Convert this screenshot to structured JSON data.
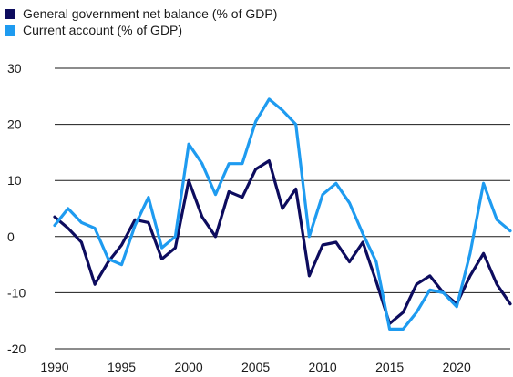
{
  "chart_data": {
    "type": "line",
    "title": "",
    "xlabel": "",
    "ylabel": "",
    "xlim": [
      1990,
      2024
    ],
    "ylim": [
      -20,
      30
    ],
    "y_ticks": [
      30,
      20,
      10,
      0,
      -10,
      -20
    ],
    "x_ticks": [
      1990,
      1995,
      2000,
      2005,
      2010,
      2015,
      2020
    ],
    "grid": "horizontal",
    "legend_position": "top-left",
    "x": [
      1990,
      1991,
      1992,
      1993,
      1994,
      1995,
      1996,
      1997,
      1998,
      1999,
      2000,
      2001,
      2002,
      2003,
      2004,
      2005,
      2006,
      2007,
      2008,
      2009,
      2010,
      2011,
      2012,
      2013,
      2014,
      2015,
      2016,
      2017,
      2018,
      2019,
      2020,
      2021,
      2022,
      2023,
      2024
    ],
    "series": [
      {
        "name": "General government net balance (% of GDP)",
        "color": "#0d0c5e",
        "values": [
          3.5,
          1.5,
          -1.0,
          -8.5,
          -4.5,
          -1.5,
          3.0,
          2.5,
          -4.0,
          -2.0,
          10.0,
          3.5,
          0.0,
          8.0,
          7.0,
          12.0,
          13.5,
          5.0,
          8.5,
          -7.0,
          -1.5,
          -1.0,
          -4.5,
          -1.0,
          -8.0,
          -15.5,
          -13.5,
          -8.5,
          -7.0,
          -10.0,
          -12.0,
          -7.0,
          -3.0,
          -8.5,
          -12.0
        ]
      },
      {
        "name": "Current account (% of GDP)",
        "color": "#1e9bf0",
        "values": [
          2.0,
          5.0,
          2.5,
          1.5,
          -4.0,
          -5.0,
          2.0,
          7.0,
          -2.0,
          0.0,
          16.5,
          13.0,
          7.5,
          13.0,
          13.0,
          20.5,
          24.5,
          22.5,
          20.0,
          0.0,
          7.5,
          9.5,
          6.0,
          0.5,
          -4.5,
          -16.5,
          -16.5,
          -13.5,
          -9.5,
          -10.0,
          -12.5,
          -3.0,
          9.5,
          3.0,
          1.0
        ]
      }
    ]
  }
}
